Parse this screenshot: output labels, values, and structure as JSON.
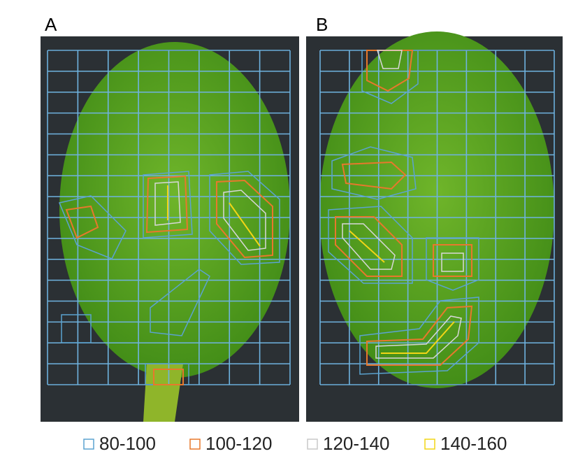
{
  "panels": [
    {
      "label": "A"
    },
    {
      "label": "B"
    }
  ],
  "legend": [
    {
      "label": "80-100",
      "color": "#5ba3d0"
    },
    {
      "label": "100-120",
      "color": "#e8782c"
    },
    {
      "label": "120-140",
      "color": "#c8c8c8"
    },
    {
      "label": "140-160",
      "color": "#f2d516"
    }
  ]
}
